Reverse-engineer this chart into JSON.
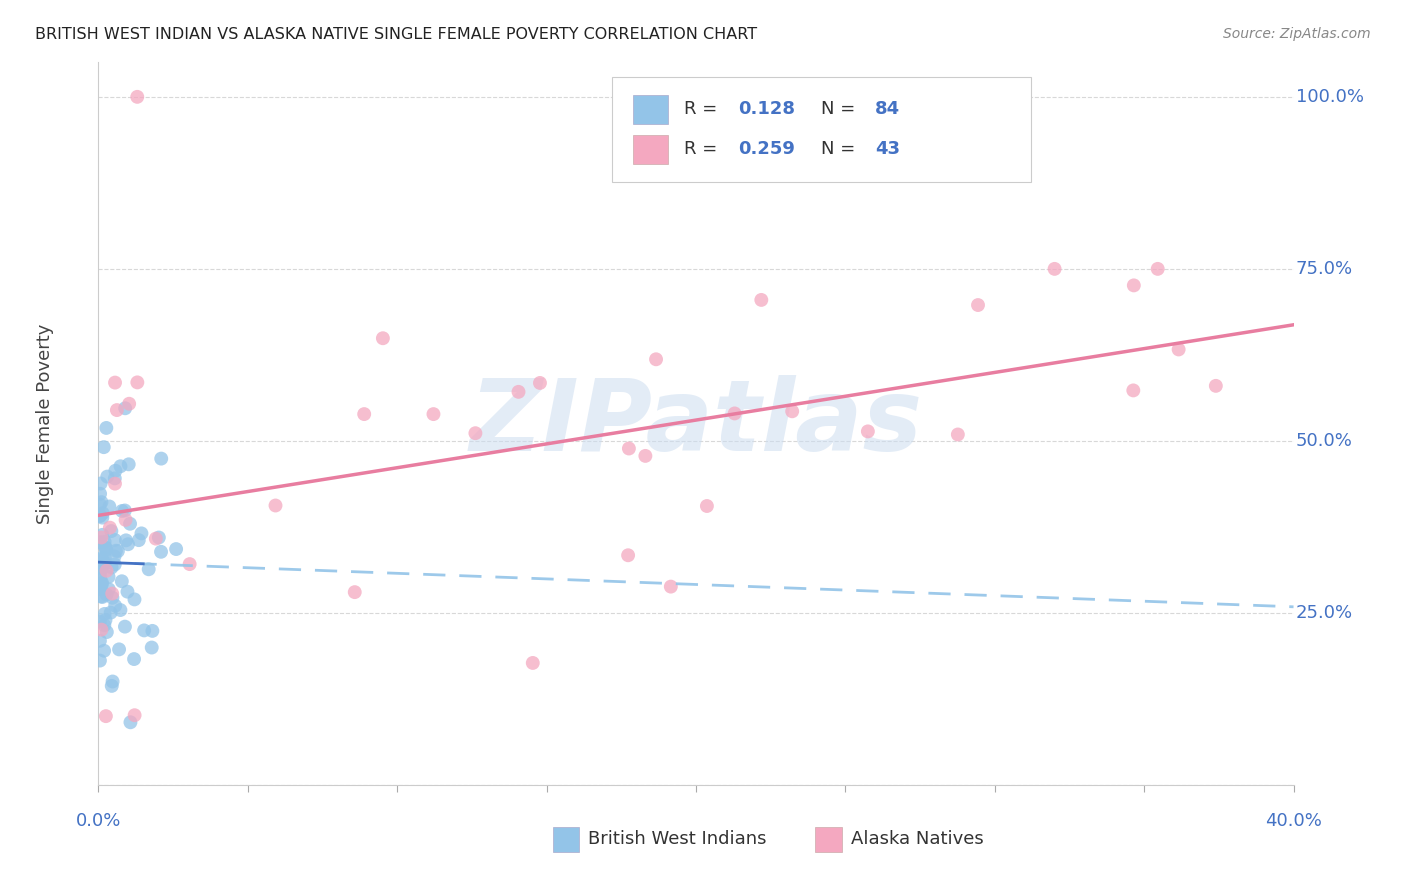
{
  "title": "BRITISH WEST INDIAN VS ALASKA NATIVE SINGLE FEMALE POVERTY CORRELATION CHART",
  "source": "Source: ZipAtlas.com",
  "watermark": "ZIPatlas",
  "ylabel": "Single Female Poverty",
  "ytick_labels": [
    "100.0%",
    "75.0%",
    "50.0%",
    "25.0%"
  ],
  "ytick_values": [
    1.0,
    0.75,
    0.5,
    0.25
  ],
  "xtick_labels": [
    "0.0%",
    "40.0%"
  ],
  "xtick_values": [
    0.0,
    0.4
  ],
  "legend_label1": "British West Indians",
  "legend_label2": "Alaska Natives",
  "r1": 0.128,
  "n1": 84,
  "r2": 0.259,
  "n2": 43,
  "color1": "#93c4e8",
  "color2": "#f4a8c0",
  "color_blue_text": "#4472c4",
  "trend1_color": "#4472c4",
  "trend2_color": "#e87da0",
  "background_color": "#ffffff",
  "grid_color": "#d8d8d8",
  "xlim": [
    0.0,
    0.4
  ],
  "ylim": [
    0.0,
    1.05
  ],
  "blue_seed": 42,
  "pink_seed": 7
}
